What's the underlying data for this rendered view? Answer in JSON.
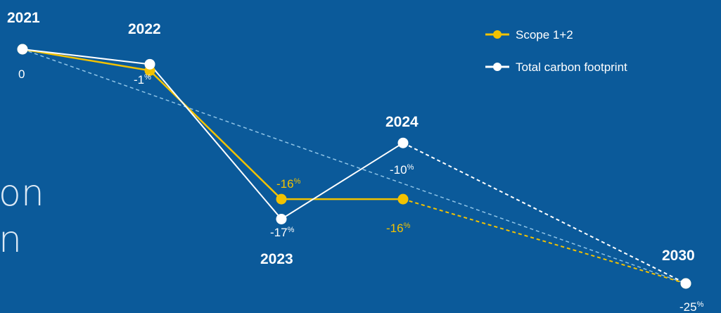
{
  "background_text": [
    "on",
    "n"
  ],
  "chart_data": {
    "type": "line",
    "x": [
      "2021",
      "2022",
      "2023",
      "2024",
      "2030"
    ],
    "series": [
      {
        "name": "Scope 1+2",
        "color": "#f2c200",
        "values": [
          0,
          -1,
          -16,
          -16,
          -25
        ],
        "labels": [
          "",
          "",
          "-16",
          "-16",
          ""
        ],
        "dashed_from_index": 3
      },
      {
        "name": "Total carbon footprint",
        "color": "#ffffff",
        "values": [
          0,
          -1,
          -17,
          -10,
          -25
        ],
        "labels": [
          "0",
          "-1",
          "-17",
          "-10",
          "-25"
        ],
        "dashed_from_index": 3
      }
    ],
    "reference_line": {
      "from": 0,
      "to": -25,
      "color": "#8ec3e6",
      "style": "dashed"
    },
    "percent_symbol": "%",
    "ylim": [
      -25,
      0
    ],
    "legend_position": "top-right"
  }
}
